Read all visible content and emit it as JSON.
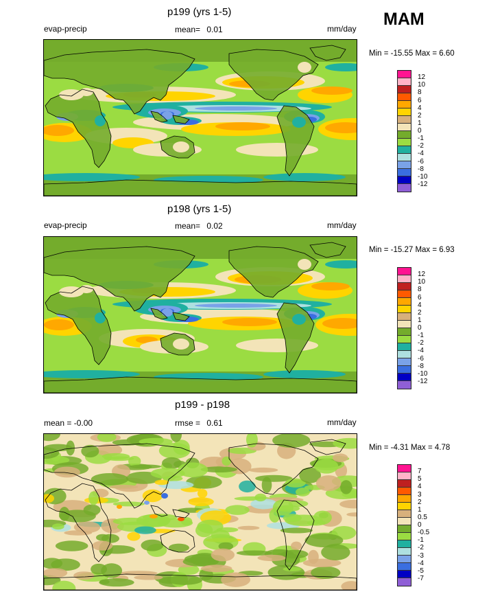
{
  "season": "MAM",
  "colors": {
    "pal12": [
      "#8f5fd6",
      "#0000c4",
      "#3a6ee0",
      "#7aa2e8",
      "#aee0e0",
      "#20b0a0",
      "#9bdc42",
      "#74ac2c",
      "#f3e4b8",
      "#d7b07c",
      "#ffd400",
      "#ffa800",
      "#ff5a00",
      "#bf2020",
      "#ffb4c8",
      "#ff1491"
    ],
    "pal7": [
      "#8f5fd6",
      "#0000c4",
      "#3a6ee0",
      "#7aa2e8",
      "#aee0e0",
      "#20b0a0",
      "#9bdc42",
      "#74ac2c",
      "#f3e4b8",
      "#d7b07c",
      "#ffd400",
      "#ffa800",
      "#ff5a00",
      "#bf2020",
      "#ffb4c8",
      "#ff1491"
    ],
    "coast": "#000000"
  },
  "panels": [
    {
      "title": "p199 (yrs 1-5)",
      "left": "evap-precip",
      "center_label": "mean=",
      "center_value": "0.01",
      "units": "mm/day",
      "minmax": "Min = -15.55 Max =   6.60",
      "levels": [
        "12",
        "10",
        "8",
        "6",
        "4",
        "2",
        "1",
        "0",
        "-1",
        "-2",
        "-4",
        "-6",
        "-8",
        "-10",
        "-12"
      ]
    },
    {
      "title": "p198 (yrs 1-5)",
      "left": "evap-precip",
      "center_label": "mean=",
      "center_value": "0.02",
      "units": "mm/day",
      "minmax": "Min = -15.27 Max =   6.93",
      "levels": [
        "12",
        "10",
        "8",
        "6",
        "4",
        "2",
        "1",
        "0",
        "-1",
        "-2",
        "-4",
        "-6",
        "-8",
        "-10",
        "-12"
      ]
    },
    {
      "title": "p199 - p198",
      "left": "mean =  -0.00",
      "center_label": "rmse =",
      "center_value": "0.61",
      "units": "mm/day",
      "minmax": "Min =  -4.31 Max =   4.78",
      "levels": [
        "7",
        "5",
        "4",
        "3",
        "2",
        "1",
        "0.5",
        "0",
        "-0.5",
        "-1",
        "-2",
        "-3",
        "-4",
        "-5",
        "-7"
      ]
    }
  ]
}
